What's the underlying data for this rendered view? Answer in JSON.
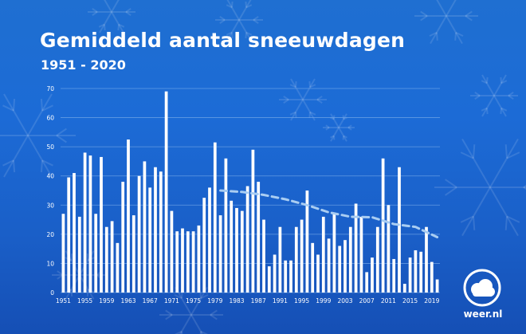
{
  "title": "Gemiddeld aantal sneeuwdagen",
  "subtitle": "1951 - 2020",
  "brand": {
    "name": "weer.nl",
    "logo_icon": "cloud-circle-icon"
  },
  "colors": {
    "background": "#1c6bd6",
    "bars": "#ffffff",
    "trend": "#a9cdf2",
    "grid": "#6fa3e6"
  },
  "chart_data": {
    "type": "bar",
    "title": "Gemiddeld aantal sneeuwdagen",
    "subtitle": "1951 - 2020",
    "xlabel": "",
    "ylabel": "",
    "ylim": [
      0,
      70
    ],
    "yticks": [
      0,
      10,
      20,
      30,
      40,
      50,
      60,
      70
    ],
    "grid": true,
    "legend": "none",
    "categories": [
      1951,
      1952,
      1953,
      1954,
      1955,
      1956,
      1957,
      1958,
      1959,
      1960,
      1961,
      1962,
      1963,
      1964,
      1965,
      1966,
      1967,
      1968,
      1969,
      1970,
      1971,
      1972,
      1973,
      1974,
      1975,
      1976,
      1977,
      1978,
      1979,
      1980,
      1981,
      1982,
      1983,
      1984,
      1985,
      1986,
      1987,
      1988,
      1989,
      1990,
      1991,
      1992,
      1993,
      1994,
      1995,
      1996,
      1997,
      1998,
      1999,
      2000,
      2001,
      2002,
      2003,
      2004,
      2005,
      2006,
      2007,
      2008,
      2009,
      2010,
      2011,
      2012,
      2013,
      2014,
      2015,
      2016,
      2017,
      2018,
      2019,
      2020
    ],
    "xtick_labels": [
      "1951",
      "1955",
      "1959",
      "1963",
      "1967",
      "1971",
      "1975",
      "1979",
      "1983",
      "1987",
      "1991",
      "1995",
      "1999",
      "2003",
      "2007",
      "2011",
      "2015",
      "2019"
    ],
    "series": [
      {
        "type": "bar",
        "values": [
          27,
          39.5,
          41,
          26,
          48,
          47,
          27,
          46.5,
          22.5,
          24.5,
          17,
          38,
          52.5,
          26.5,
          40,
          45,
          36,
          43,
          41.5,
          69,
          28,
          21,
          22,
          21,
          21,
          23,
          32.5,
          36,
          51.5,
          26.5,
          46,
          31.5,
          29,
          28,
          36.5,
          49,
          38,
          25,
          9,
          13,
          22.5,
          11,
          11,
          22.5,
          25,
          35,
          17,
          13,
          26,
          18.5,
          27,
          16,
          18,
          22.5,
          30.5,
          26,
          7,
          12,
          22.5,
          46,
          30,
          11.5,
          43,
          3,
          12,
          14.5,
          14,
          22.5,
          10.5,
          4.5
        ]
      },
      {
        "type": "line",
        "style": "dashed",
        "x": [
          1980,
          1984,
          1988,
          1992,
          1996,
          2000,
          2004,
          2008,
          2012,
          2016,
          2020
        ],
        "values": [
          35,
          34.5,
          33.5,
          32,
          30,
          27.5,
          26,
          25.8,
          23.5,
          22.5,
          19
        ]
      }
    ]
  }
}
